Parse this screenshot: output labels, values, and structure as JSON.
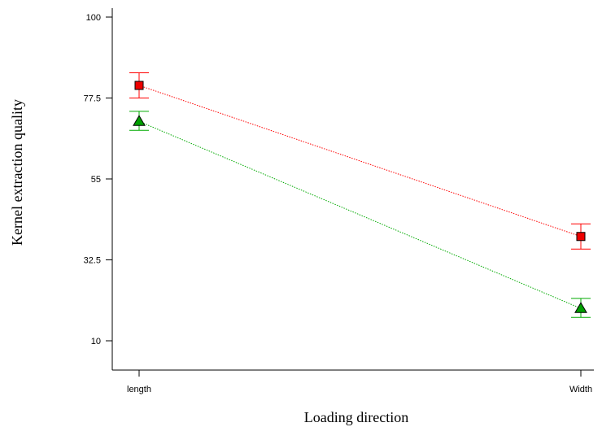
{
  "chart_data": {
    "type": "line",
    "categories": [
      "length",
      "Width"
    ],
    "xlabel": "Loading direction",
    "ylabel": "Kernel extraction quality",
    "ylim": [
      10,
      100
    ],
    "yticks": [
      10,
      32.5,
      55,
      77.5,
      100
    ],
    "ytick_labels": [
      "10",
      "32.5",
      "55",
      "77.5",
      "100"
    ],
    "grid": false,
    "series": [
      {
        "marker": "square",
        "color": "#ff0000",
        "marker_color": "#ee0000",
        "values": [
          81,
          39
        ],
        "error_low": [
          77.5,
          35.5
        ],
        "error_high": [
          84.5,
          42.5
        ]
      },
      {
        "marker": "triangle",
        "color": "#00aa00",
        "marker_color": "#00a000",
        "values": [
          71,
          19
        ],
        "error_low": [
          68.5,
          16.5
        ],
        "error_high": [
          73.8,
          21.8
        ]
      }
    ]
  }
}
